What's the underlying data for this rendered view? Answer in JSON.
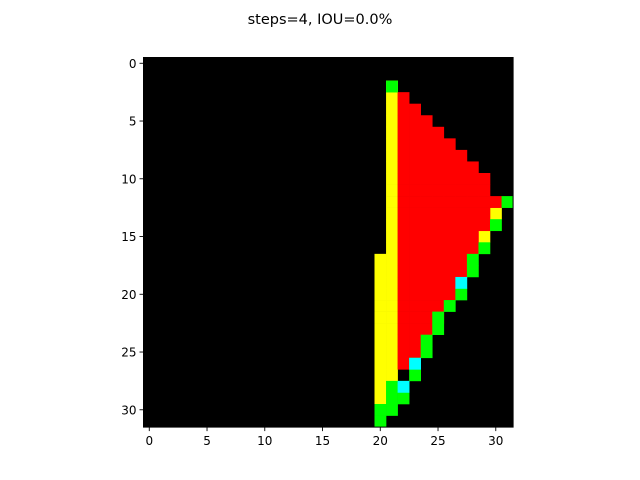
{
  "chart_data": {
    "type": "heatmap",
    "title": "steps=4, IOU=0.0%",
    "grid": false,
    "xlim": [
      -0.5,
      31.5
    ],
    "ylim": [
      31.5,
      -0.5
    ],
    "xticks": [
      0,
      5,
      10,
      15,
      20,
      25,
      30
    ],
    "yticks": [
      0,
      5,
      10,
      15,
      20,
      25,
      30
    ],
    "colors": {
      "background": "#000000",
      "red": "#ff0000",
      "yellow": "#ffff00",
      "green": "#00ff00",
      "cyan": "#00ffff"
    },
    "cells": {
      "yellow": [
        [
          2,
          21
        ],
        [
          3,
          21
        ],
        [
          4,
          21
        ],
        [
          5,
          21
        ],
        [
          6,
          21
        ],
        [
          7,
          21
        ],
        [
          8,
          21
        ],
        [
          9,
          21
        ],
        [
          10,
          21
        ],
        [
          11,
          21
        ],
        [
          12,
          21
        ],
        [
          13,
          21
        ],
        [
          14,
          21
        ],
        [
          15,
          21
        ],
        [
          16,
          21
        ],
        [
          17,
          20
        ],
        [
          17,
          21
        ],
        [
          18,
          20
        ],
        [
          18,
          21
        ],
        [
          19,
          20
        ],
        [
          19,
          21
        ],
        [
          20,
          20
        ],
        [
          20,
          21
        ],
        [
          21,
          20
        ],
        [
          21,
          21
        ],
        [
          22,
          20
        ],
        [
          22,
          21
        ],
        [
          23,
          20
        ],
        [
          23,
          21
        ],
        [
          24,
          20
        ],
        [
          24,
          21
        ],
        [
          25,
          20
        ],
        [
          25,
          21
        ],
        [
          26,
          20
        ],
        [
          26,
          21
        ],
        [
          27,
          20
        ],
        [
          27,
          21
        ],
        [
          28,
          20
        ],
        [
          29,
          20
        ],
        [
          13,
          30
        ],
        [
          15,
          29
        ]
      ],
      "red": [
        [
          3,
          22
        ],
        [
          4,
          22
        ],
        [
          4,
          23
        ],
        [
          5,
          22
        ],
        [
          5,
          23
        ],
        [
          5,
          24
        ],
        [
          6,
          22
        ],
        [
          6,
          23
        ],
        [
          6,
          24
        ],
        [
          6,
          25
        ],
        [
          7,
          22
        ],
        [
          7,
          23
        ],
        [
          7,
          24
        ],
        [
          7,
          25
        ],
        [
          7,
          26
        ],
        [
          8,
          22
        ],
        [
          8,
          23
        ],
        [
          8,
          24
        ],
        [
          8,
          25
        ],
        [
          8,
          26
        ],
        [
          8,
          27
        ],
        [
          9,
          22
        ],
        [
          9,
          23
        ],
        [
          9,
          24
        ],
        [
          9,
          25
        ],
        [
          9,
          26
        ],
        [
          9,
          27
        ],
        [
          9,
          28
        ],
        [
          10,
          22
        ],
        [
          10,
          23
        ],
        [
          10,
          24
        ],
        [
          10,
          25
        ],
        [
          10,
          26
        ],
        [
          10,
          27
        ],
        [
          10,
          28
        ],
        [
          10,
          29
        ],
        [
          11,
          22
        ],
        [
          11,
          23
        ],
        [
          11,
          24
        ],
        [
          11,
          25
        ],
        [
          11,
          26
        ],
        [
          11,
          27
        ],
        [
          11,
          28
        ],
        [
          11,
          29
        ],
        [
          12,
          22
        ],
        [
          12,
          23
        ],
        [
          12,
          24
        ],
        [
          12,
          25
        ],
        [
          12,
          26
        ],
        [
          12,
          27
        ],
        [
          12,
          28
        ],
        [
          12,
          29
        ],
        [
          12,
          30
        ],
        [
          13,
          22
        ],
        [
          13,
          23
        ],
        [
          13,
          24
        ],
        [
          13,
          25
        ],
        [
          13,
          26
        ],
        [
          13,
          27
        ],
        [
          13,
          28
        ],
        [
          13,
          29
        ],
        [
          14,
          22
        ],
        [
          14,
          23
        ],
        [
          14,
          24
        ],
        [
          14,
          25
        ],
        [
          14,
          26
        ],
        [
          14,
          27
        ],
        [
          14,
          28
        ],
        [
          14,
          29
        ],
        [
          15,
          22
        ],
        [
          15,
          23
        ],
        [
          15,
          24
        ],
        [
          15,
          25
        ],
        [
          15,
          26
        ],
        [
          15,
          27
        ],
        [
          15,
          28
        ],
        [
          16,
          22
        ],
        [
          16,
          23
        ],
        [
          16,
          24
        ],
        [
          16,
          25
        ],
        [
          16,
          26
        ],
        [
          16,
          27
        ],
        [
          16,
          28
        ],
        [
          17,
          22
        ],
        [
          17,
          23
        ],
        [
          17,
          24
        ],
        [
          17,
          25
        ],
        [
          17,
          26
        ],
        [
          17,
          27
        ],
        [
          18,
          22
        ],
        [
          18,
          23
        ],
        [
          18,
          24
        ],
        [
          18,
          25
        ],
        [
          18,
          26
        ],
        [
          18,
          27
        ],
        [
          19,
          22
        ],
        [
          19,
          23
        ],
        [
          19,
          24
        ],
        [
          19,
          25
        ],
        [
          19,
          26
        ],
        [
          20,
          22
        ],
        [
          20,
          23
        ],
        [
          20,
          24
        ],
        [
          20,
          25
        ],
        [
          20,
          26
        ],
        [
          21,
          22
        ],
        [
          21,
          23
        ],
        [
          21,
          24
        ],
        [
          21,
          25
        ],
        [
          22,
          22
        ],
        [
          22,
          23
        ],
        [
          22,
          24
        ],
        [
          22,
          25
        ],
        [
          23,
          22
        ],
        [
          23,
          23
        ],
        [
          23,
          24
        ],
        [
          24,
          22
        ],
        [
          24,
          23
        ],
        [
          25,
          22
        ],
        [
          25,
          23
        ],
        [
          26,
          22
        ]
      ],
      "green": [
        [
          2,
          21
        ],
        [
          12,
          31
        ],
        [
          14,
          30
        ],
        [
          16,
          29
        ],
        [
          17,
          28
        ],
        [
          18,
          28
        ],
        [
          20,
          27
        ],
        [
          21,
          26
        ],
        [
          22,
          25
        ],
        [
          23,
          25
        ],
        [
          24,
          24
        ],
        [
          25,
          24
        ],
        [
          26,
          23
        ],
        [
          27,
          23
        ],
        [
          28,
          22
        ],
        [
          28,
          21
        ],
        [
          29,
          21
        ],
        [
          29,
          22
        ],
        [
          30,
          20
        ],
        [
          30,
          21
        ],
        [
          31,
          20
        ]
      ],
      "cyan": [
        [
          19,
          27
        ],
        [
          26,
          23
        ],
        [
          28,
          22
        ]
      ]
    }
  }
}
